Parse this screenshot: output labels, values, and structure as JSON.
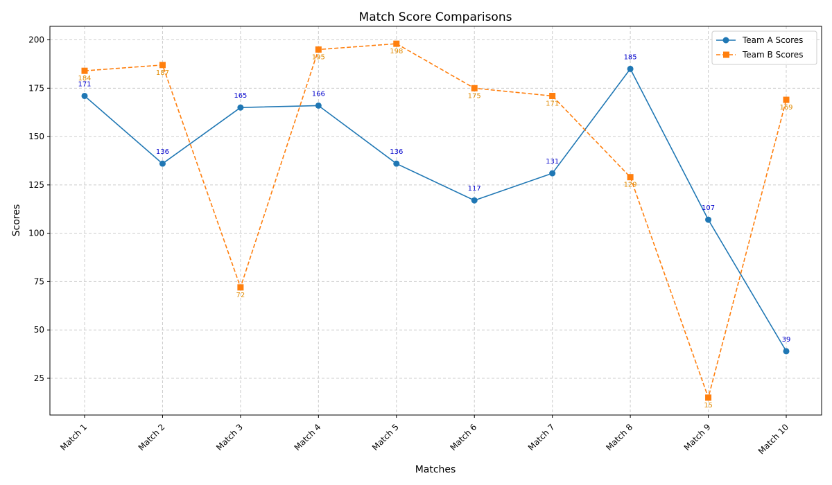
{
  "chart_data": {
    "type": "line",
    "title": "Match Score Comparisons",
    "xlabel": "Matches",
    "ylabel": "Scores",
    "categories": [
      "Match 1",
      "Match 2",
      "Match 3",
      "Match 4",
      "Match 5",
      "Match 6",
      "Match 7",
      "Match 8",
      "Match 9",
      "Match 10"
    ],
    "series": [
      {
        "name": "Team A Scores",
        "values": [
          171,
          136,
          165,
          166,
          136,
          117,
          131,
          185,
          107,
          39
        ],
        "color": "#1f77b4",
        "label_color": "#0000cc",
        "marker": "circle",
        "line_style": "solid",
        "label_position": "above"
      },
      {
        "name": "Team B Scores",
        "values": [
          184,
          187,
          72,
          195,
          198,
          175,
          171,
          129,
          15,
          169
        ],
        "color": "#ff7f0e",
        "label_color": "#e08a00",
        "marker": "square",
        "line_style": "dashed",
        "label_position": "below"
      }
    ],
    "ylim": [
      6,
      207
    ],
    "yticks": [
      25,
      50,
      75,
      100,
      125,
      150,
      175,
      200
    ],
    "grid": true,
    "legend_position": "top-right"
  }
}
